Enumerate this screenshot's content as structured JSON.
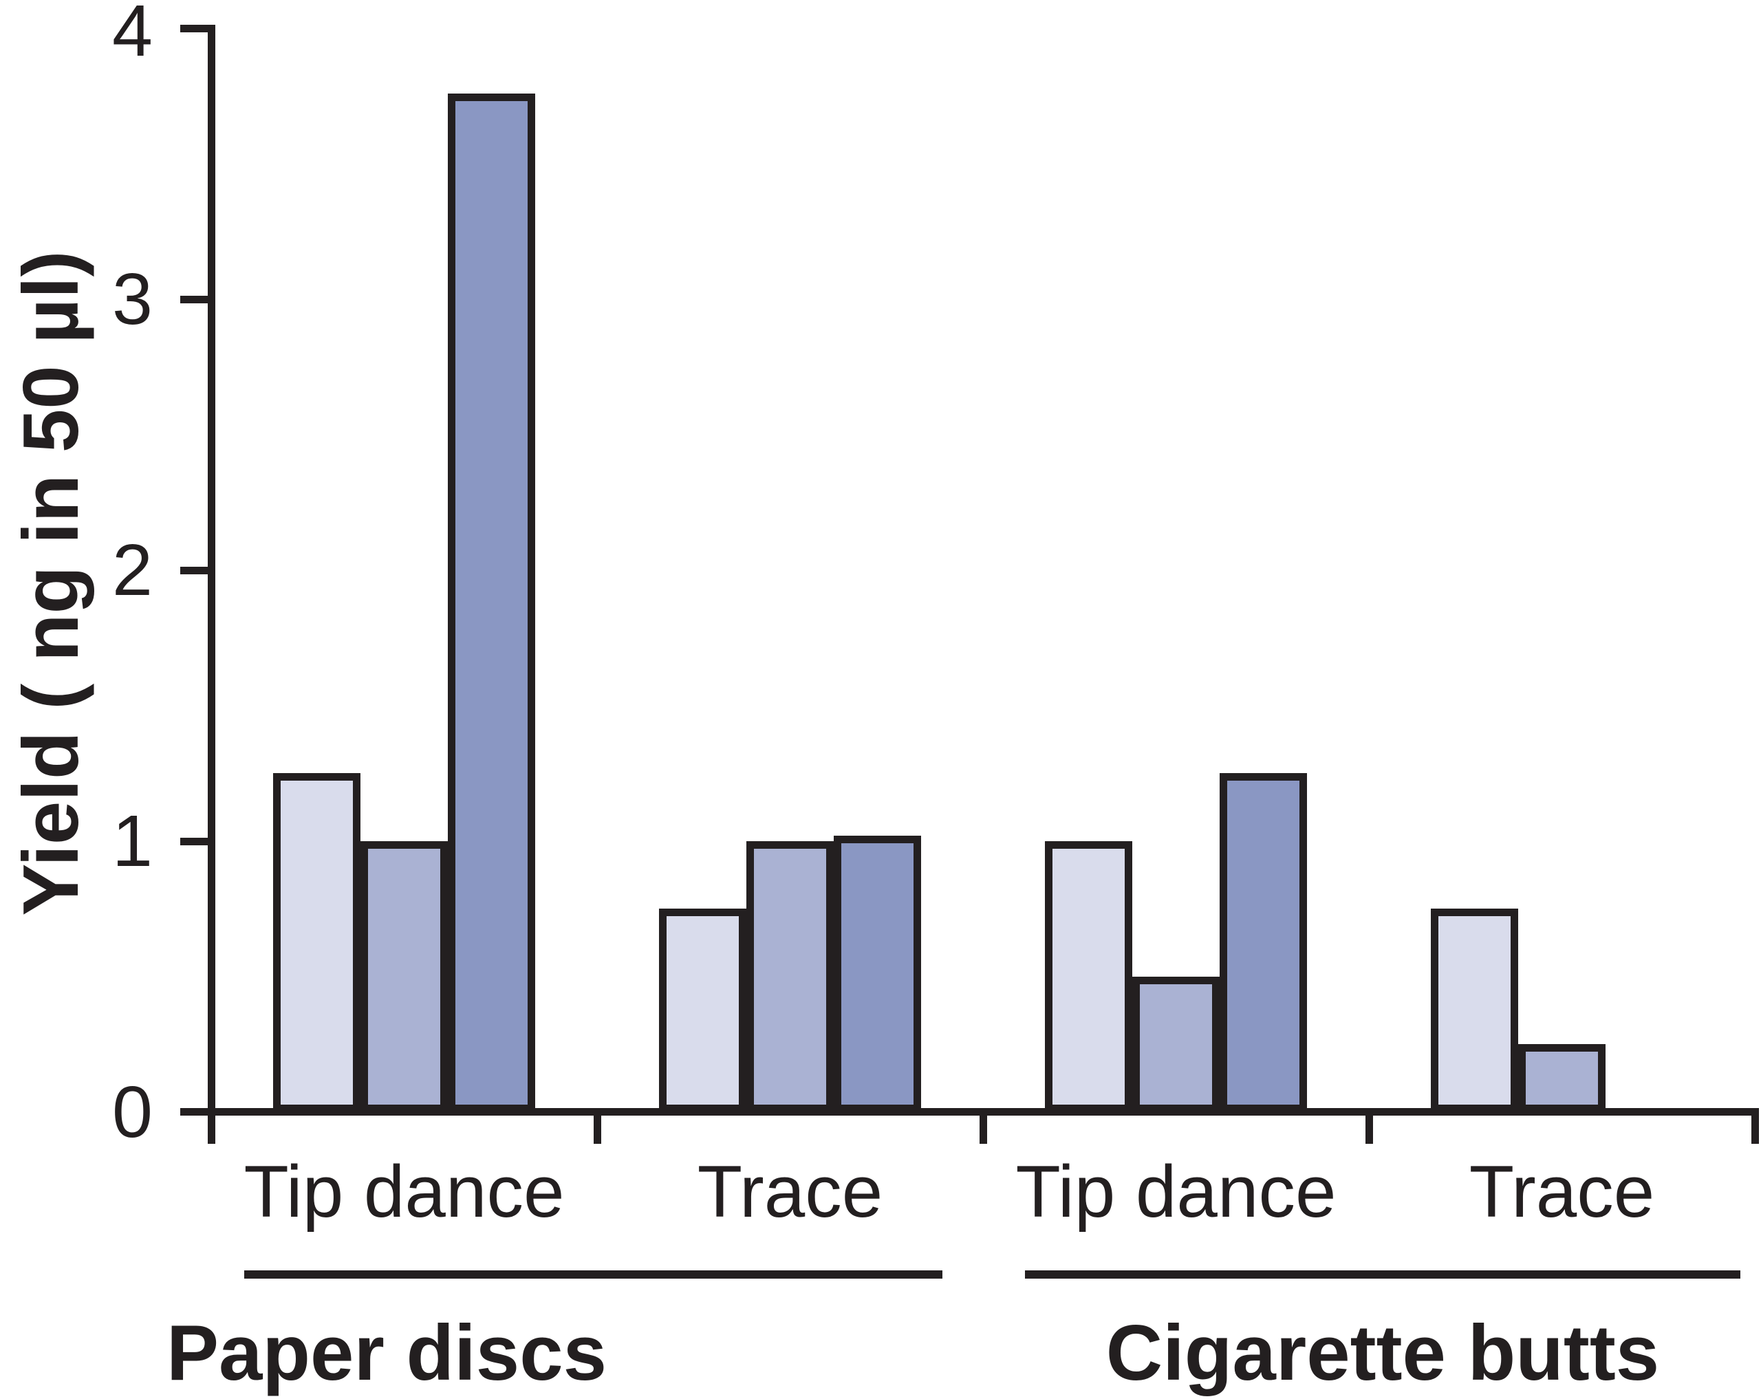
{
  "chart_data": {
    "type": "bar",
    "title": "",
    "ylabel": "Yield ( ng in 50 µl)",
    "xlabel": "",
    "ylim": [
      0,
      4
    ],
    "ytick_labels": [
      "0",
      "1",
      "2",
      "3",
      "4"
    ],
    "grid": false,
    "legend": "none",
    "series_colors": [
      "#D9DCEC",
      "#AAB2D3",
      "#8A97C3"
    ],
    "outline_color": "#231F20",
    "groups": [
      {
        "label": "Paper discs",
        "subgroups": [
          {
            "label": "Tip dance",
            "values": [
              1.25,
              1.0,
              3.76
            ]
          },
          {
            "label": "Trace",
            "values": [
              0.75,
              1.0,
              1.02
            ]
          }
        ]
      },
      {
        "label": "Cigarette butts",
        "subgroups": [
          {
            "label": "Tip dance",
            "values": [
              1.0,
              0.5,
              1.25
            ]
          },
          {
            "label": "Trace",
            "values": [
              0.75,
              0.25
            ]
          }
        ]
      }
    ]
  }
}
